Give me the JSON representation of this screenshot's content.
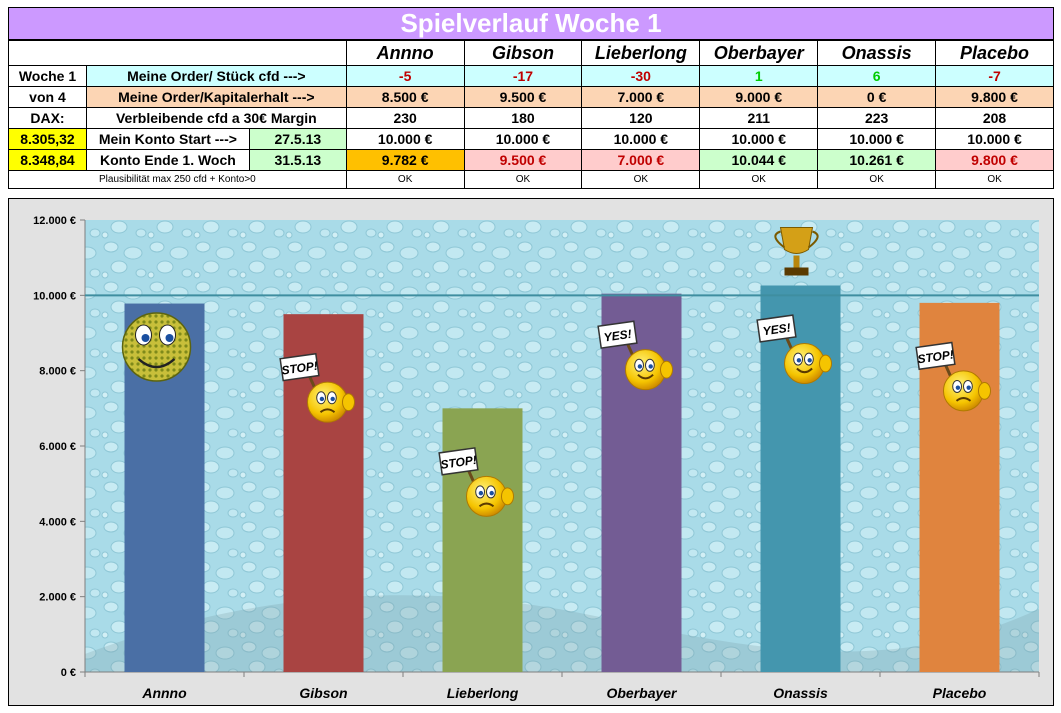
{
  "title": "Spielverlauf Woche 1",
  "players": [
    "Annno",
    "Gibson",
    "Lieberlong",
    "Oberbayer",
    "Onassis",
    "Placebo"
  ],
  "rows": {
    "order": {
      "c1": "Woche 1",
      "c2": "Meine Order/ Stück cfd  --->",
      "values": [
        "-5",
        "-17",
        "-30",
        "1",
        "6",
        "-7"
      ]
    },
    "kapital": {
      "c1": "von 4",
      "c2": "Meine Order/Kapitalerhalt  --->",
      "values": [
        "8.500 €",
        "9.500 €",
        "7.000 €",
        "9.000 €",
        "0 €",
        "9.800 €"
      ]
    },
    "cfd": {
      "c1": "DAX:",
      "c2": "Verbleibende cfd a 30€ Margin",
      "values": [
        "230",
        "180",
        "120",
        "211",
        "223",
        "208"
      ]
    },
    "start": {
      "c1": "8.305,32",
      "c2": "Mein Konto Start --->",
      "c3": "27.5.13",
      "values": [
        "10.000 €",
        "10.000 €",
        "10.000 €",
        "10.000 €",
        "10.000 €",
        "10.000 €"
      ]
    },
    "ende": {
      "c1": "8.348,84",
      "c2": "Konto Ende 1. Woch",
      "c3": "31.5.13",
      "values": [
        "9.782 €",
        "9.500 €",
        "7.000 €",
        "10.044 €",
        "10.261 €",
        "9.800 €"
      ]
    },
    "plaus": {
      "label": "Plausibilität max 250 cfd + Konto>0",
      "values": [
        "OK",
        "OK",
        "OK",
        "OK",
        "OK",
        "OK"
      ]
    }
  },
  "colors": {
    "order_values": [
      "#c00000",
      "#c00000",
      "#c00000",
      "#00cc00",
      "#00cc00",
      "#c00000"
    ],
    "ende_bg": [
      "#ffc000",
      "#ffcccc",
      "#ffcccc",
      "#ccffcc",
      "#ccffcc",
      "#ffcccc"
    ],
    "ende_text": [
      "#000000",
      "#c00000",
      "#c00000",
      "#000000",
      "#000000",
      "#c00000"
    ]
  },
  "chart_data": {
    "type": "bar",
    "categories": [
      "Annno",
      "Gibson",
      "Lieberlong",
      "Oberbayer",
      "Onassis",
      "Placebo"
    ],
    "values": [
      9782,
      9500,
      7000,
      10044,
      10261,
      9800
    ],
    "colors": [
      "#4a6fa5",
      "#a94442",
      "#8aa452",
      "#735c94",
      "#4496ae",
      "#e0843e"
    ],
    "ylim": [
      0,
      12000
    ],
    "yticks": [
      0,
      2000,
      4000,
      6000,
      8000,
      10000,
      12000
    ],
    "ytick_labels": [
      "0 €",
      "2.000 €",
      "4.000 €",
      "6.000 €",
      "8.000 €",
      "10.000 €",
      "12.000 €"
    ],
    "reference_line": 10000,
    "grid": false,
    "legend": "none",
    "decorations": [
      "smiley-face",
      "stop-sign-smiley",
      "stop-sign-smiley",
      "yes-sign-smiley",
      "yes-sign-smiley-trophy",
      "stop-sign-smiley"
    ],
    "sign_texts": [
      "",
      "STOP!",
      "STOP!",
      "YES!",
      "YES!",
      "STOP!"
    ]
  }
}
